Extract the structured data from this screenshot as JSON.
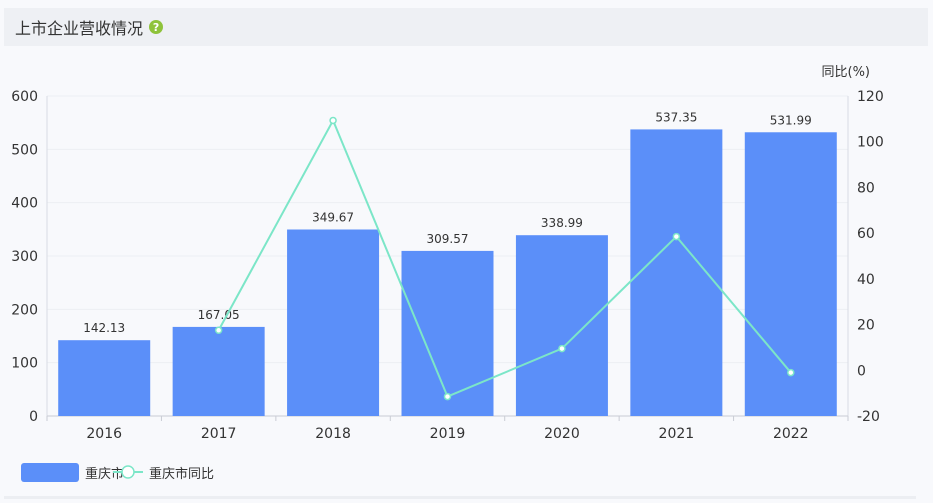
{
  "header": {
    "title": "上市企业营收情况",
    "help_icon": "question-circle-icon",
    "help_glyph": "?"
  },
  "chart_data": {
    "type": "bar",
    "categories": [
      "2016",
      "2017",
      "2018",
      "2019",
      "2020",
      "2021",
      "2022"
    ],
    "series": [
      {
        "name": "重庆市",
        "type": "bar",
        "axis": "left",
        "values": [
          142.13,
          167.05,
          349.67,
          309.57,
          338.99,
          537.35,
          531.99
        ],
        "color": "#5b8ff9"
      },
      {
        "name": "重庆市同比",
        "type": "line",
        "axis": "right",
        "values": [
          null,
          17.5,
          109.3,
          -11.5,
          9.5,
          58.5,
          -1.0
        ],
        "color": "#7ce6c8"
      }
    ],
    "y_left": {
      "ylim": [
        0,
        600
      ],
      "ticks": [
        "0",
        "100",
        "200",
        "300",
        "400",
        "500",
        "600"
      ]
    },
    "y_right": {
      "ylabel": "同比(%)",
      "ylim": [
        -20,
        120
      ],
      "ticks": [
        "-20",
        "0",
        "20",
        "40",
        "60",
        "80",
        "100",
        "120"
      ]
    },
    "data_labels": [
      "142.13",
      "167.05",
      "349.67",
      "309.57",
      "338.99",
      "537.35",
      "531.99"
    ],
    "legend": [
      "重庆市",
      "重庆市同比"
    ],
    "legend_position": "bottom-left",
    "grid": true
  }
}
